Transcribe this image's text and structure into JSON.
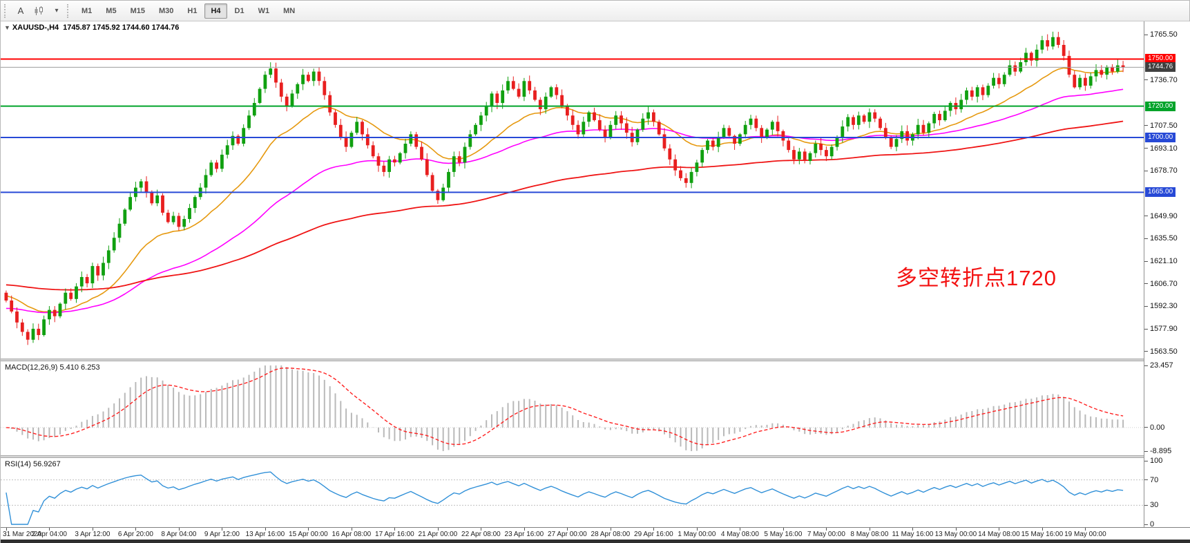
{
  "toolbar": {
    "tools": [
      {
        "name": "text-tool",
        "type": "label",
        "label": "A"
      },
      {
        "name": "candlestick-chart-tool",
        "type": "candles"
      },
      {
        "name": "indicators-menu",
        "type": "dropdown",
        "label": "▾"
      }
    ],
    "timeframes": [
      {
        "label": "M1",
        "active": false
      },
      {
        "label": "M5",
        "active": false
      },
      {
        "label": "M15",
        "active": false
      },
      {
        "label": "M30",
        "active": false
      },
      {
        "label": "H1",
        "active": false
      },
      {
        "label": "H4",
        "active": true
      },
      {
        "label": "D1",
        "active": false
      },
      {
        "label": "W1",
        "active": false
      },
      {
        "label": "MN",
        "active": false
      }
    ]
  },
  "chart_header": {
    "collapse_icon": "▼",
    "symbol": "XAUUSD-,H4",
    "ohlc": "1745.87 1745.92 1744.60 1744.76"
  },
  "chart_data": {
    "type": "candlestick",
    "symbol": "XAUUSD-",
    "timeframe": "H4",
    "ohlc_display": {
      "open": 1745.87,
      "high": 1745.92,
      "low": 1744.6,
      "close": 1744.76
    },
    "price_range": {
      "min": 1559,
      "max": 1774
    },
    "candle_colors": {
      "up": "#10a010",
      "down": "#e81f1f"
    },
    "closes": [
      1596,
      1589,
      1582,
      1576,
      1571,
      1578,
      1574,
      1584,
      1590,
      1586,
      1594,
      1601,
      1597,
      1605,
      1611,
      1607,
      1618,
      1612,
      1620,
      1628,
      1636,
      1645,
      1654,
      1662,
      1668,
      1672,
      1665,
      1658,
      1663,
      1652,
      1646,
      1650,
      1643,
      1648,
      1655,
      1662,
      1668,
      1676,
      1684,
      1680,
      1689,
      1695,
      1701,
      1696,
      1706,
      1714,
      1722,
      1731,
      1740,
      1744,
      1735,
      1726,
      1720,
      1728,
      1734,
      1740,
      1736,
      1742,
      1736,
      1727,
      1716,
      1708,
      1700,
      1694,
      1703,
      1710,
      1702,
      1695,
      1688,
      1682,
      1678,
      1686,
      1684,
      1690,
      1696,
      1702,
      1694,
      1686,
      1676,
      1666,
      1660,
      1668,
      1678,
      1688,
      1684,
      1694,
      1702,
      1708,
      1714,
      1720,
      1728,
      1722,
      1730,
      1736,
      1731,
      1726,
      1736,
      1730,
      1724,
      1718,
      1726,
      1732,
      1727,
      1720,
      1714,
      1708,
      1702,
      1710,
      1716,
      1711,
      1705,
      1700,
      1708,
      1714,
      1709,
      1703,
      1697,
      1705,
      1712,
      1716,
      1710,
      1702,
      1693,
      1686,
      1679,
      1674,
      1671,
      1678,
      1684,
      1692,
      1698,
      1694,
      1700,
      1706,
      1701,
      1696,
      1702,
      1708,
      1712,
      1706,
      1700,
      1705,
      1710,
      1704,
      1698,
      1692,
      1686,
      1691,
      1685,
      1690,
      1696,
      1692,
      1688,
      1694,
      1700,
      1707,
      1713,
      1708,
      1714,
      1710,
      1716,
      1712,
      1706,
      1700,
      1694,
      1699,
      1704,
      1698,
      1702,
      1708,
      1703,
      1709,
      1715,
      1711,
      1717,
      1722,
      1718,
      1724,
      1730,
      1726,
      1732,
      1727,
      1733,
      1738,
      1734,
      1740,
      1746,
      1742,
      1748,
      1754,
      1749,
      1756,
      1762,
      1758,
      1764,
      1759,
      1752,
      1740,
      1732,
      1738,
      1733,
      1739,
      1743,
      1740,
      1745,
      1742,
      1746,
      1744.76
    ],
    "bars_per_label": 8,
    "x_labels": [
      "31 Mar 2020",
      "2 Apr 04:00",
      "3 Apr 12:00",
      "6 Apr 20:00",
      "8 Apr 04:00",
      "9 Apr 12:00",
      "13 Apr 16:00",
      "15 Apr 00:00",
      "16 Apr 08:00",
      "17 Apr 16:00",
      "21 Apr 00:00",
      "22 Apr 08:00",
      "23 Apr 16:00",
      "27 Apr 00:00",
      "28 Apr 08:00",
      "29 Apr 16:00",
      "1 May 00:00",
      "4 May 08:00",
      "5 May 16:00",
      "7 May 00:00",
      "8 May 08:00",
      "11 May 16:00",
      "13 May 00:00",
      "14 May 08:00",
      "15 May 16:00",
      "19 May 00:00"
    ],
    "moving_averages": [
      {
        "name": "fast-ma",
        "period": 20,
        "color": "#e6990f",
        "start": 1599
      },
      {
        "name": "medium-ma",
        "period": 55,
        "color": "#ff00ff",
        "start": 1591
      },
      {
        "name": "slow-ma",
        "period": 140,
        "color": "#ef1414",
        "start": 1606
      }
    ],
    "levels": [
      {
        "value": 1750.0,
        "label": "1750.00",
        "color": "#ff0000"
      },
      {
        "value": 1720.0,
        "label": "1720.00",
        "color": "#00a32a"
      },
      {
        "value": 1700.0,
        "label": "1700.00",
        "color": "#2749d6"
      },
      {
        "value": 1665.0,
        "label": "1665.00",
        "color": "#2749d6"
      }
    ],
    "current_price": {
      "value": 1744.76,
      "label": "1744.76",
      "line_color": "#9c9c9c",
      "box_color": "#404040"
    },
    "y_axis_labels": [
      "1765.50",
      "1736.70",
      "1707.50",
      "1693.10",
      "1678.70",
      "1649.90",
      "1635.50",
      "1621.10",
      "1606.70",
      "1592.30",
      "1577.90",
      "1563.50"
    ],
    "annotation": {
      "text": "多空转折点1720",
      "color": "#f31212"
    }
  },
  "macd_panel": {
    "label": "MACD(12,26,9) 5.410 6.253",
    "fast": 12,
    "slow": 26,
    "signal_period": 9,
    "values": {
      "main": 5.41,
      "signal": 6.253
    },
    "axis": {
      "max": 23.457,
      "zero": "0.00",
      "min": -8.895
    },
    "axis_labels": [
      "23.457",
      "0.00",
      "-8.895"
    ],
    "histogram_color": "#b9b9b9",
    "signal_color": "#ff2020"
  },
  "rsi_panel": {
    "label": "RSI(14) 56.9267",
    "period": 14,
    "value": 56.9267,
    "axis_labels": [
      "100",
      "70",
      "30",
      "0"
    ],
    "axis_values": [
      100,
      70,
      30,
      0
    ],
    "level_lines": [
      70,
      30
    ],
    "line_color": "#3090d8"
  }
}
